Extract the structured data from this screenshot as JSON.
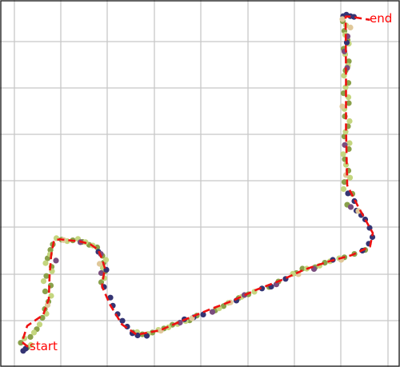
{
  "chart_data": {
    "type": "scatter",
    "title": "",
    "xlabel": "",
    "ylabel": "",
    "x_range": [
      0,
      100
    ],
    "y_range": [
      0,
      100
    ],
    "grid": true,
    "tick_labels": false,
    "annotations": [
      {
        "key": "start",
        "text": "start"
      },
      {
        "key": "end",
        "text": "end"
      }
    ],
    "colors": {
      "route": "#ee1111",
      "grid": "#c8c8c8",
      "frame": "#222222",
      "points_light": "#c4d67f",
      "points_mid": "#8aa14a",
      "points_dark": "#343473",
      "points_purple": "#7a4d7e",
      "points_tan": "#e0c89a"
    },
    "route": [
      [
        7.0,
        5.5
      ],
      [
        5.5,
        6.8
      ],
      [
        6.8,
        11.2
      ],
      [
        10.8,
        14.2
      ],
      [
        12.2,
        18.5
      ],
      [
        12.4,
        25.0
      ],
      [
        12.8,
        30.5
      ],
      [
        13.5,
        34.5
      ],
      [
        15.0,
        34.8
      ],
      [
        20.0,
        34.2
      ],
      [
        22.5,
        33.5
      ],
      [
        24.5,
        32.0
      ],
      [
        25.5,
        29.5
      ],
      [
        26.2,
        27.0
      ],
      [
        25.5,
        22.0
      ],
      [
        27.5,
        17.0
      ],
      [
        30.5,
        11.6
      ],
      [
        34.2,
        8.8
      ],
      [
        40.0,
        10.0
      ],
      [
        45.5,
        12.6
      ],
      [
        52.0,
        15.5
      ],
      [
        58.0,
        18.0
      ],
      [
        64.0,
        21.0
      ],
      [
        70.0,
        23.5
      ],
      [
        76.0,
        26.5
      ],
      [
        82.0,
        28.7
      ],
      [
        88.0,
        30.5
      ],
      [
        92.5,
        32.8
      ],
      [
        93.2,
        36.5
      ],
      [
        89.5,
        43.8
      ],
      [
        86.8,
        49.5
      ],
      [
        86.5,
        65.0
      ],
      [
        86.5,
        80.0
      ],
      [
        86.4,
        95.5
      ],
      [
        87.5,
        95.5
      ],
      [
        92.5,
        94.6
      ]
    ],
    "point_groups": [
      {
        "color": "points_mid",
        "points": [
          [
            6.8,
            5.3
          ],
          [
            5.2,
            6.6
          ],
          [
            7.6,
            8.2
          ],
          [
            9.2,
            10.3
          ],
          [
            10.6,
            13.4
          ],
          [
            11.2,
            15.8
          ],
          [
            12.1,
            17.8
          ],
          [
            11.3,
            20.6
          ],
          [
            12.7,
            22.2
          ],
          [
            11.6,
            24.8
          ],
          [
            12.9,
            27.3
          ],
          [
            11.9,
            29.6
          ],
          [
            12.6,
            31.9
          ],
          [
            13.2,
            33.4
          ],
          [
            15.4,
            34.7
          ],
          [
            18.2,
            34.5
          ],
          [
            20.6,
            34.1
          ],
          [
            22.3,
            33.3
          ],
          [
            24.3,
            32.6
          ],
          [
            25.6,
            30.3
          ],
          [
            25.9,
            28.4
          ],
          [
            26.3,
            26.1
          ],
          [
            25.3,
            23.1
          ],
          [
            33.3,
            9.4
          ],
          [
            35.6,
            8.9
          ],
          [
            38.1,
            9.4
          ],
          [
            41.0,
            10.5
          ],
          [
            43.1,
            11.5
          ],
          [
            47.4,
            12.7
          ],
          [
            49.2,
            14.0
          ],
          [
            53.8,
            15.4
          ],
          [
            55.9,
            16.6
          ],
          [
            59.7,
            18.8
          ],
          [
            62.1,
            19.8
          ],
          [
            67.3,
            21.8
          ],
          [
            69.6,
            23.3
          ],
          [
            74.1,
            25.6
          ],
          [
            75.6,
            26.8
          ],
          [
            78.8,
            27.2
          ],
          [
            81.2,
            28.4
          ],
          [
            86.1,
            29.9
          ],
          [
            88.6,
            30.8
          ],
          [
            91.3,
            31.9
          ],
          [
            86.8,
            44.2
          ],
          [
            88.1,
            47.2
          ],
          [
            86.1,
            50.4
          ],
          [
            87.1,
            53.5
          ],
          [
            86.2,
            56.6
          ],
          [
            87.2,
            59.4
          ],
          [
            86.1,
            62.8
          ],
          [
            87.0,
            65.6
          ],
          [
            86.2,
            68.3
          ],
          [
            87.2,
            71.9
          ],
          [
            85.9,
            74.6
          ],
          [
            87.1,
            77.4
          ],
          [
            86.4,
            80.8
          ],
          [
            87.2,
            83.3
          ],
          [
            85.9,
            86.7
          ],
          [
            86.9,
            89.1
          ],
          [
            86.1,
            91.6
          ],
          [
            85.7,
            94.2
          ]
        ]
      },
      {
        "color": "points_light",
        "points": [
          [
            7.7,
            6.0
          ],
          [
            6.1,
            7.8
          ],
          [
            8.5,
            9.4
          ],
          [
            9.9,
            11.6
          ],
          [
            11.6,
            14.5
          ],
          [
            12.8,
            19.4
          ],
          [
            10.9,
            23.4
          ],
          [
            13.0,
            26.1
          ],
          [
            11.4,
            28.3
          ],
          [
            12.5,
            30.7
          ],
          [
            14.1,
            35.1
          ],
          [
            16.8,
            34.3
          ],
          [
            19.5,
            34.9
          ],
          [
            21.4,
            34.0
          ],
          [
            23.2,
            33.1
          ],
          [
            26.5,
            29.2
          ],
          [
            25.7,
            27.0
          ],
          [
            26.1,
            24.2
          ],
          [
            34.3,
            9.5
          ],
          [
            37.0,
            9.0
          ],
          [
            39.6,
            10.1
          ],
          [
            42.1,
            10.8
          ],
          [
            44.4,
            11.7
          ],
          [
            46.4,
            12.5
          ],
          [
            54.8,
            16.0
          ],
          [
            57.1,
            17.5
          ],
          [
            60.4,
            19.1
          ],
          [
            63.6,
            20.5
          ],
          [
            73.2,
            25.4
          ],
          [
            76.7,
            26.8
          ],
          [
            79.9,
            27.6
          ],
          [
            82.5,
            28.8
          ],
          [
            84.8,
            29.6
          ],
          [
            85.9,
            48.5
          ],
          [
            87.5,
            51.6
          ],
          [
            86.5,
            55.1
          ],
          [
            85.8,
            58.0
          ],
          [
            87.4,
            61.0
          ],
          [
            86.4,
            64.1
          ],
          [
            87.4,
            67.0
          ],
          [
            86.1,
            70.3
          ],
          [
            87.1,
            73.5
          ],
          [
            86.4,
            76.2
          ],
          [
            86.0,
            79.4
          ],
          [
            87.0,
            82.1
          ],
          [
            86.3,
            85.2
          ],
          [
            87.2,
            88.1
          ],
          [
            86.3,
            90.5
          ],
          [
            86.5,
            93.1
          ]
        ]
      },
      {
        "color": "points_dark",
        "points": [
          [
            6.4,
            5.0
          ],
          [
            5.8,
            4.4
          ],
          [
            24.6,
            31.4
          ],
          [
            26.6,
            26.5
          ],
          [
            26.0,
            21.8
          ],
          [
            27.6,
            18.9
          ],
          [
            28.2,
            16.7
          ],
          [
            29.4,
            14.4
          ],
          [
            30.6,
            12.6
          ],
          [
            31.8,
            11.0
          ],
          [
            33.1,
            9.2
          ],
          [
            34.4,
            8.6
          ],
          [
            36.7,
            8.5
          ],
          [
            46.1,
            13.0
          ],
          [
            48.4,
            13.5
          ],
          [
            50.8,
            14.3
          ],
          [
            59.1,
            18.1
          ],
          [
            65.5,
            21.4
          ],
          [
            67.8,
            21.9
          ],
          [
            71.4,
            24.0
          ],
          [
            83.2,
            29.2
          ],
          [
            90.6,
            31.7
          ],
          [
            92.2,
            33.6
          ],
          [
            93.1,
            35.4
          ],
          [
            92.4,
            37.9
          ],
          [
            91.3,
            40.2
          ],
          [
            90.3,
            41.4
          ],
          [
            89.1,
            42.6
          ],
          [
            88.6,
            45.2
          ],
          [
            87.0,
            47.3
          ],
          [
            86.7,
            88.4
          ],
          [
            85.8,
            95.6
          ],
          [
            86.6,
            96.0
          ],
          [
            87.6,
            95.6
          ],
          [
            88.5,
            95.4
          ]
        ]
      },
      {
        "color": "points_purple",
        "points": [
          [
            14.0,
            29.0
          ],
          [
            20.1,
            34.0
          ],
          [
            25.2,
            30.8
          ],
          [
            25.3,
            25.6
          ],
          [
            45.0,
            12.1
          ],
          [
            53.1,
            15.0
          ],
          [
            61.1,
            19.6
          ],
          [
            69.1,
            22.5
          ],
          [
            78.5,
            26.7
          ],
          [
            87.7,
            43.6
          ],
          [
            86.2,
            60.5
          ],
          [
            86.8,
            81.5
          ],
          [
            86.1,
            86.0
          ],
          [
            86.9,
            90.1
          ]
        ]
      },
      {
        "color": "points_tan",
        "points": [
          [
            11.9,
            16.9
          ],
          [
            15.9,
            34.6
          ],
          [
            24.9,
            28.1
          ],
          [
            40.2,
            9.9
          ],
          [
            48.0,
            13.3
          ],
          [
            57.6,
            17.6
          ],
          [
            74.6,
            25.3
          ],
          [
            85.3,
            29.2
          ],
          [
            89.6,
            42.5
          ],
          [
            86.5,
            52.3
          ],
          [
            85.6,
            71.0
          ],
          [
            87.6,
            92.5
          ],
          [
            85.6,
            94.8
          ]
        ]
      }
    ]
  }
}
